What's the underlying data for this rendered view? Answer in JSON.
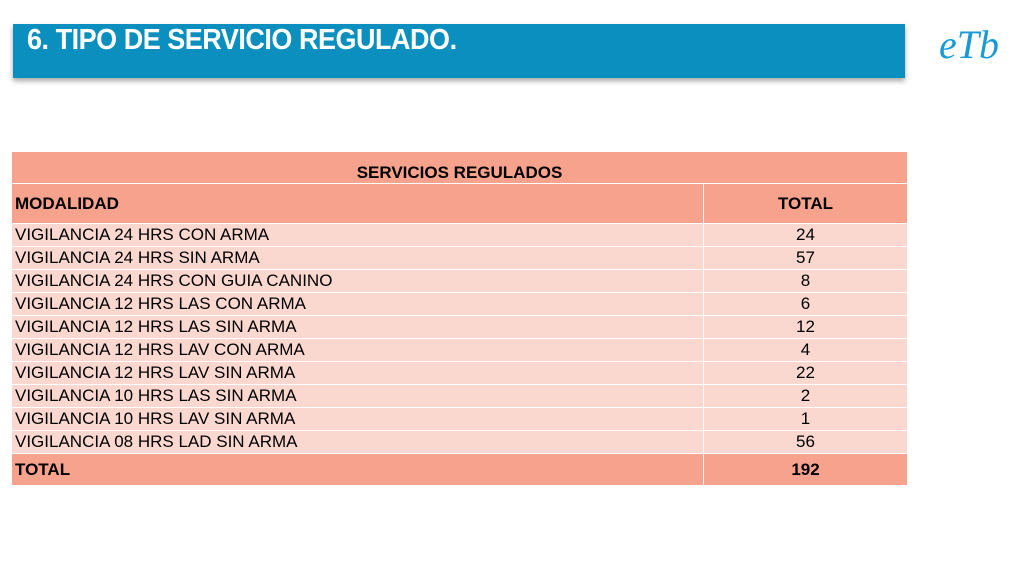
{
  "header": {
    "title": "6. TIPO DE SERVICIO REGULADO.",
    "logo_text": "eTb",
    "bar_color": "#0a8fbe"
  },
  "table": {
    "title": "SERVICIOS REGULADOS",
    "columns": [
      "MODALIDAD",
      "TOTAL"
    ],
    "rows": [
      {
        "modalidad": "VIGILANCIA 24 HRS CON ARMA",
        "total": "24"
      },
      {
        "modalidad": "VIGILANCIA 24 HRS SIN ARMA",
        "total": "57"
      },
      {
        "modalidad": "VIGILANCIA 24 HRS CON GUIA CANINO",
        "total": "8"
      },
      {
        "modalidad": "VIGILANCIA 12 HRS LAS CON ARMA",
        "total": "6"
      },
      {
        "modalidad": "VIGILANCIA 12 HRS LAS SIN ARMA",
        "total": "12"
      },
      {
        "modalidad": "VIGILANCIA 12 HRS LAV CON ARMA",
        "total": "4"
      },
      {
        "modalidad": "VIGILANCIA 12 HRS LAV SIN ARMA",
        "total": "22"
      },
      {
        "modalidad": "VIGILANCIA 10 HRS LAS SIN ARMA",
        "total": "2"
      },
      {
        "modalidad": "VIGILANCIA 10 HRS LAV SIN ARMA",
        "total": "1"
      },
      {
        "modalidad": "VIGILANCIA 08 HRS LAD SIN ARMA",
        "total": "56"
      }
    ],
    "total_label": "TOTAL",
    "total_value": "192",
    "header_color": "#f7a28c",
    "row_color": "#fbd8cf"
  }
}
